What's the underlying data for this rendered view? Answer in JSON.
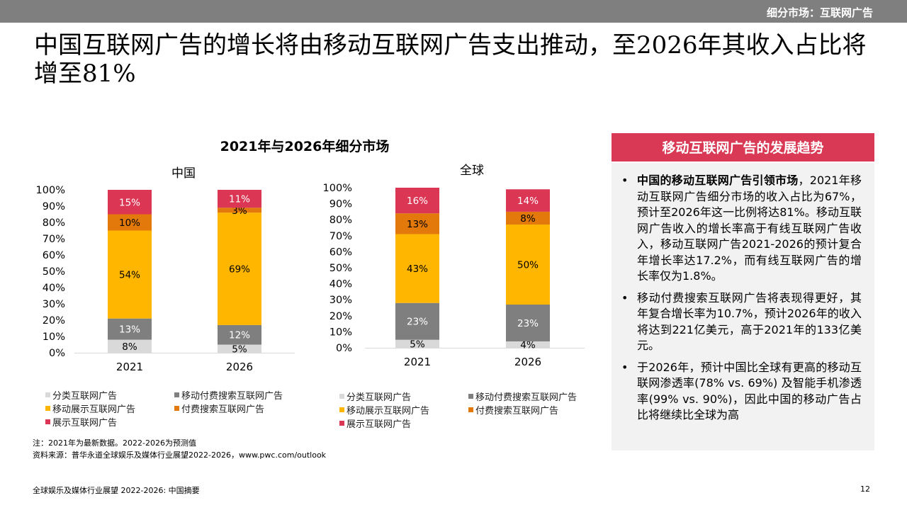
{
  "header": {
    "section": "细分市场：互联网广告"
  },
  "title": "中国互联网广告的增长将由移动互联网广告支出推动，至2026年其收入占比将增至81%",
  "chart_title": "2021年与2026年细分市场",
  "colors": {
    "classified": "#d9d9d9",
    "mobile_search": "#7f7f7f",
    "mobile_display": "#ffb600",
    "paid_search": "#e3790b",
    "display": "#db3654",
    "accent": "#d93954"
  },
  "chart_data": [
    {
      "type": "bar",
      "stacked": true,
      "title": "中国",
      "categories": [
        "2021",
        "2026"
      ],
      "ylim": [
        0,
        100
      ],
      "yticks": [
        "0%",
        "10%",
        "20%",
        "30%",
        "40%",
        "50%",
        "60%",
        "70%",
        "80%",
        "90%",
        "100%"
      ],
      "series": [
        {
          "name": "分类互联网广告",
          "values": [
            8,
            5
          ],
          "labels": [
            "8%",
            "5%"
          ]
        },
        {
          "name": "移动付费搜索互联网广告",
          "values": [
            13,
            12
          ],
          "labels": [
            "13%",
            "12%"
          ]
        },
        {
          "name": "移动展示互联网广告",
          "values": [
            54,
            69
          ],
          "labels": [
            "54%",
            "69%"
          ]
        },
        {
          "name": "付费搜索互联网广告",
          "values": [
            10,
            3
          ],
          "labels": [
            "10%",
            "3%"
          ]
        },
        {
          "name": "展示互联网广告",
          "values": [
            15,
            11
          ],
          "labels": [
            "15%",
            "11%"
          ]
        }
      ]
    },
    {
      "type": "bar",
      "stacked": true,
      "title": "全球",
      "categories": [
        "2021",
        "2026"
      ],
      "ylim": [
        0,
        100
      ],
      "yticks": [
        "0%",
        "10%",
        "20%",
        "30%",
        "40%",
        "50%",
        "60%",
        "70%",
        "80%",
        "90%",
        "100%"
      ],
      "series": [
        {
          "name": "分类互联网广告",
          "values": [
            5,
            4
          ],
          "labels": [
            "5%",
            "4%"
          ]
        },
        {
          "name": "移动付费搜索互联网广告",
          "values": [
            23,
            23
          ],
          "labels": [
            "23%",
            "23%"
          ]
        },
        {
          "name": "移动展示互联网广告",
          "values": [
            43,
            50
          ],
          "labels": [
            "43%",
            "50%"
          ]
        },
        {
          "name": "付费搜索互联网广告",
          "values": [
            13,
            8
          ],
          "labels": [
            "13%",
            "8%"
          ]
        },
        {
          "name": "展示互联网广告",
          "values": [
            16,
            14
          ],
          "labels": [
            "16%",
            "14%"
          ]
        }
      ]
    }
  ],
  "legend": [
    {
      "label": "分类互联网广告",
      "color": "#d9d9d9"
    },
    {
      "label": "移动付费搜索互联网广告",
      "color": "#7f7f7f"
    },
    {
      "label": "移动展示互联网广告",
      "color": "#ffb600"
    },
    {
      "label": "付费搜索互联网广告",
      "color": "#e3790b"
    },
    {
      "label": "展示互联网广告",
      "color": "#db3654"
    }
  ],
  "note": "注：2021年为最新数据。2022-2026为预测值",
  "source": "资料来源：普华永道全球娱乐及媒体行业展望2022-2026，www.pwc.com/outlook",
  "footer": {
    "left": "全球娱乐及媒体行业展望 2022-2026: 中国摘要",
    "page": "12"
  },
  "panel": {
    "title": "移动互联网广告的发展趋势",
    "bullets": [
      {
        "bold": "中国的移动互联网广告引领市场",
        "text": "，2021年移动互联网广告细分市场的收入占比为67%，预计至2026年这一比例将达81%。移动互联网广告收入的增长率高于有线互联网广告收入，移动互联网广告2021-2026的预计复合年增长率达17.2%，而有线互联网广告的增长率仅为1.8%。"
      },
      {
        "bold": "",
        "text": "移动付费搜索互联网广告将表现得更好，其年复合增长率为10.7%，预计2026年的收入将达到221亿美元，高于2021年的133亿美元。"
      },
      {
        "bold": "",
        "text": "于2026年，预计中国比全球有更高的移动互联网渗透率(78% vs. 69%) 及智能手机渗透率(99% vs. 90%)，因此中国的移动广告占比将继续比全球为高"
      }
    ]
  }
}
